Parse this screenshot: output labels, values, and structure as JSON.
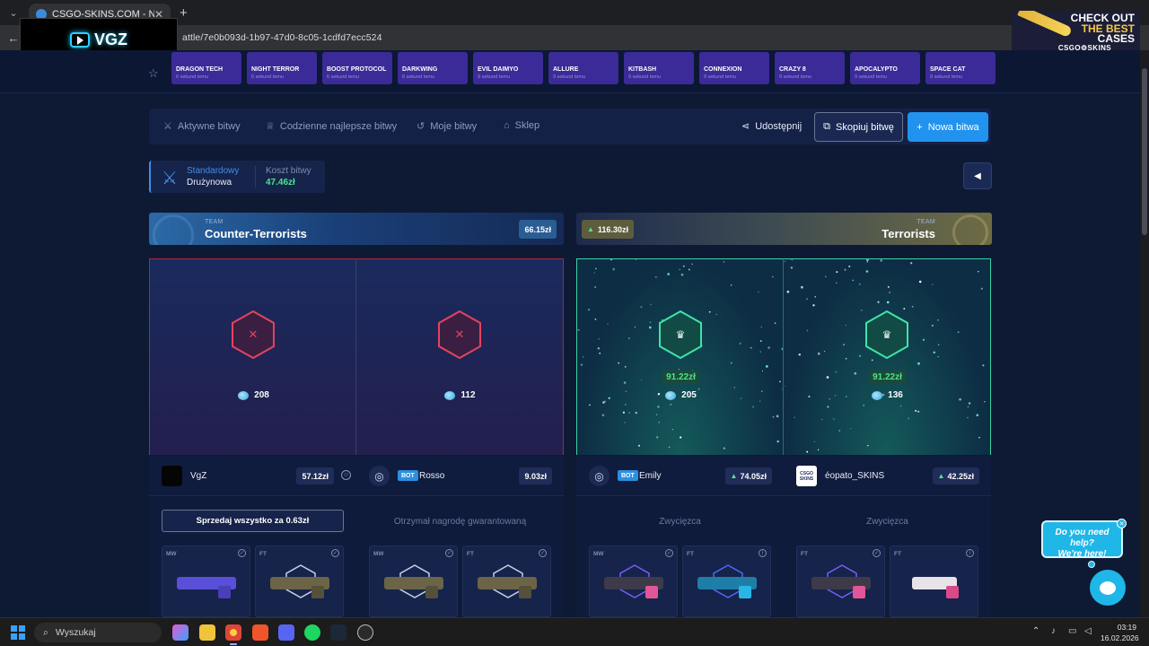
{
  "browser": {
    "tab_title": "CSGO-SKINS.COM - Najlepsze",
    "tab_close": "✕",
    "new_tab": "+",
    "url": "attle/7e0b093d-1b97-47d0-8c05-1cdfd7ecc524"
  },
  "overlay": {
    "brand": "VGZ"
  },
  "promo": {
    "line1": "CHECK OUT",
    "line2": "THE BEST",
    "line3": "CASES",
    "brand": "CSGO⚙SKINS"
  },
  "cases": [
    {
      "name": "DRAGON TECH",
      "time": "6 sekund temu"
    },
    {
      "name": "NIGHT TERROR",
      "time": "6 sekund temu"
    },
    {
      "name": "BOOST PROTOCOL",
      "time": "6 sekund temu"
    },
    {
      "name": "DARKWING",
      "time": "6 sekund temu"
    },
    {
      "name": "EVIL DAIMYO",
      "time": "9 sekund temu"
    },
    {
      "name": "ALLURE",
      "time": "9 sekund temu"
    },
    {
      "name": "KITBASH",
      "time": "9 sekund temu"
    },
    {
      "name": "CONNEXION",
      "time": "9 sekund temu"
    },
    {
      "name": "CRAZY 8",
      "time": "9 sekund temu"
    },
    {
      "name": "APOCALYPTO",
      "time": "9 sekund temu"
    },
    {
      "name": "SPACE CAT",
      "time": "9 sekund temu"
    }
  ],
  "nav": {
    "active_battles": "Aktywne bitwy",
    "daily_best": "Codzienne najlepsze bitwy",
    "my_battles": "Moje bitwy",
    "shop": "Sklep",
    "share": "Udostępnij",
    "copy": "Skopiuj bitwę",
    "new": "Nowa bitwa"
  },
  "battle": {
    "mode": "Standardowy",
    "type": "Drużynowa",
    "cost_label": "Koszt bitwy",
    "cost": "47.46zł"
  },
  "teams": {
    "ct": {
      "label": "TEAM",
      "name": "Counter-Terrorists",
      "value": "66.15zł"
    },
    "t": {
      "label": "TEAM",
      "name": "Terrorists",
      "value": "116.30zł"
    }
  },
  "slots": [
    {
      "result": "lose",
      "coins": "208",
      "prize": ""
    },
    {
      "result": "lose",
      "coins": "112",
      "prize": ""
    },
    {
      "result": "win",
      "coins": "205",
      "prize": "91.22zł"
    },
    {
      "result": "win",
      "coins": "136",
      "prize": "91.22zł"
    }
  ],
  "players": [
    {
      "name": "VgZ",
      "bot": "",
      "value": "57.12zł",
      "status": ""
    },
    {
      "name": "Rosso",
      "bot": "BOT",
      "value": "9.03zł",
      "status": "Otrzymał nagrodę gwarantowaną"
    },
    {
      "name": "Emily",
      "bot": "BOT",
      "value": "74.05zł",
      "status": "Zwycięzca"
    },
    {
      "name": "éopato_SKINS",
      "bot": "",
      "value": "42.25zł",
      "status": "Zwycięzca"
    }
  ],
  "sell_all": "Sprzedaj wszystko za 0.63zł",
  "avatar_text": "CSGO SKINS",
  "items": [
    {
      "wear": "MW"
    },
    {
      "wear": "FT"
    },
    {
      "wear": "MW"
    },
    {
      "wear": "FT"
    },
    {
      "wear": "MW"
    },
    {
      "wear": "FT"
    },
    {
      "wear": "FT"
    },
    {
      "wear": "FT"
    }
  ],
  "help": {
    "line1": "Do you need help?",
    "line2": "We're here!"
  },
  "taskbar": {
    "search": "Wyszukaj",
    "time": "03:19",
    "date": "16.02.2026"
  },
  "colors": {
    "accent": "#2193ee",
    "win": "#38d3a3",
    "lose": "#a12a45",
    "money": "#4fe28c"
  }
}
